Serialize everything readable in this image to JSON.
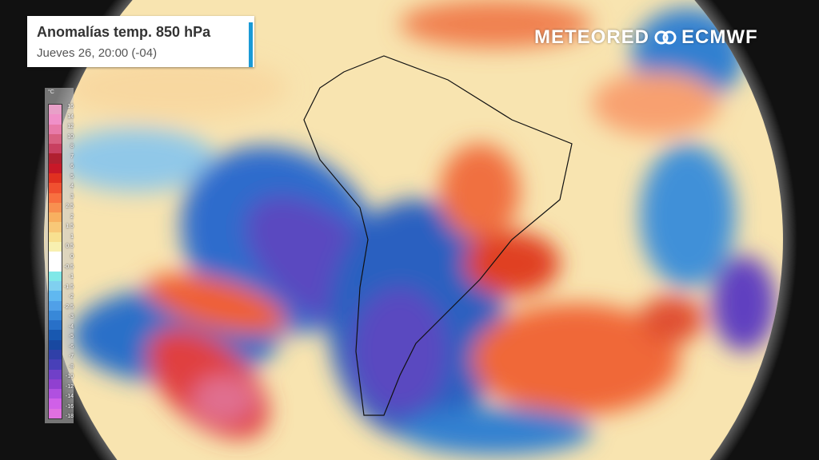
{
  "header": {
    "title": "Anomalías temp. 850 hPa",
    "subtitle": "Jueves 26, 20:00 (-04)"
  },
  "logos": {
    "meteored": "METEORED",
    "ecmwf": "ECMWF"
  },
  "legend": {
    "unit": "°C",
    "labels": [
      "16",
      "14",
      "12",
      "10",
      "8",
      "7",
      "6",
      "5",
      "4",
      "3",
      "2.5",
      "2",
      "1.5",
      "1",
      "0.5",
      "0",
      "-0.5",
      "-1",
      "-1.5",
      "-2",
      "-2.5",
      "-3",
      "-4",
      "-5",
      "-6",
      "-7",
      "-8",
      "-10",
      "-12",
      "-14",
      "-16",
      "-18"
    ],
    "colors": [
      "#e8a0c8",
      "#f090c8",
      "#e87aa8",
      "#d86080",
      "#c84060",
      "#b02030",
      "#c81828",
      "#e03020",
      "#f05030",
      "#f87040",
      "#f89050",
      "#f8b060",
      "#f8c878",
      "#f8e090",
      "#f8f0b0",
      "#ffffff",
      "#ffffff",
      "#80e8e8",
      "#80d0f0",
      "#60b8f0",
      "#50a0e8",
      "#3888d8",
      "#2870c8",
      "#1858b0",
      "#1848a0",
      "#3040a8",
      "#4840b8",
      "#7040c8",
      "#9040d0",
      "#b050e0",
      "#d060e8",
      "#e070e0"
    ]
  },
  "map": {
    "colors": {
      "warm": "#f07040",
      "cold": "#2060c0",
      "very_cold": "#6040c0",
      "neutral": "#f8e4b0",
      "ocean_bg": "#111111"
    }
  }
}
